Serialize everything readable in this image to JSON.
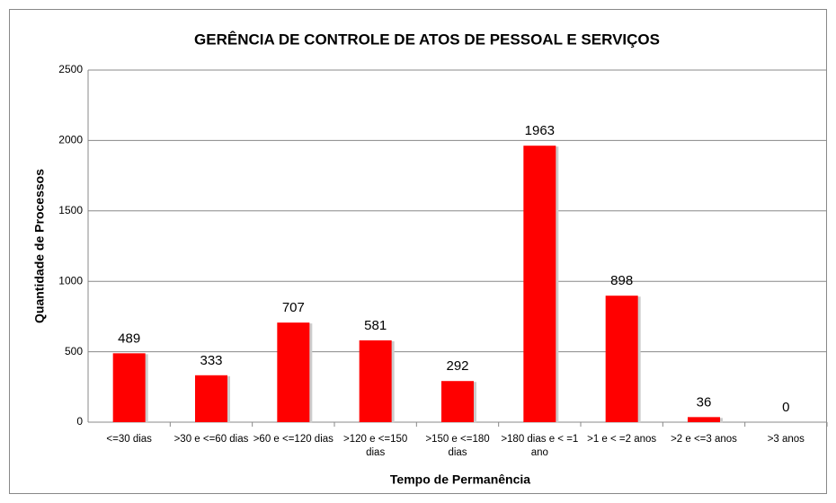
{
  "chart_data": {
    "type": "bar",
    "title": "GERÊNCIA DE CONTROLE DE ATOS DE PESSOAL E SERVIÇOS",
    "x_label": "Tempo de Permanência",
    "y_label": "Quantidade de Processos",
    "categories": [
      "<=30 dias",
      ">30 e <=60 dias",
      ">60 e <=120 dias",
      ">120 e <=150 dias",
      ">150 e <=180 dias",
      ">180 dias e < =1 ano",
      ">1 e < =2 anos",
      ">2 e <=3 anos",
      ">3 anos"
    ],
    "values": [
      489,
      333,
      707,
      581,
      292,
      1963,
      898,
      36,
      0
    ],
    "color": "#ff0000",
    "ylim": [
      0,
      2500
    ],
    "yticks": [
      0,
      500,
      1000,
      1500,
      2000,
      2500
    ],
    "grid": true
  }
}
